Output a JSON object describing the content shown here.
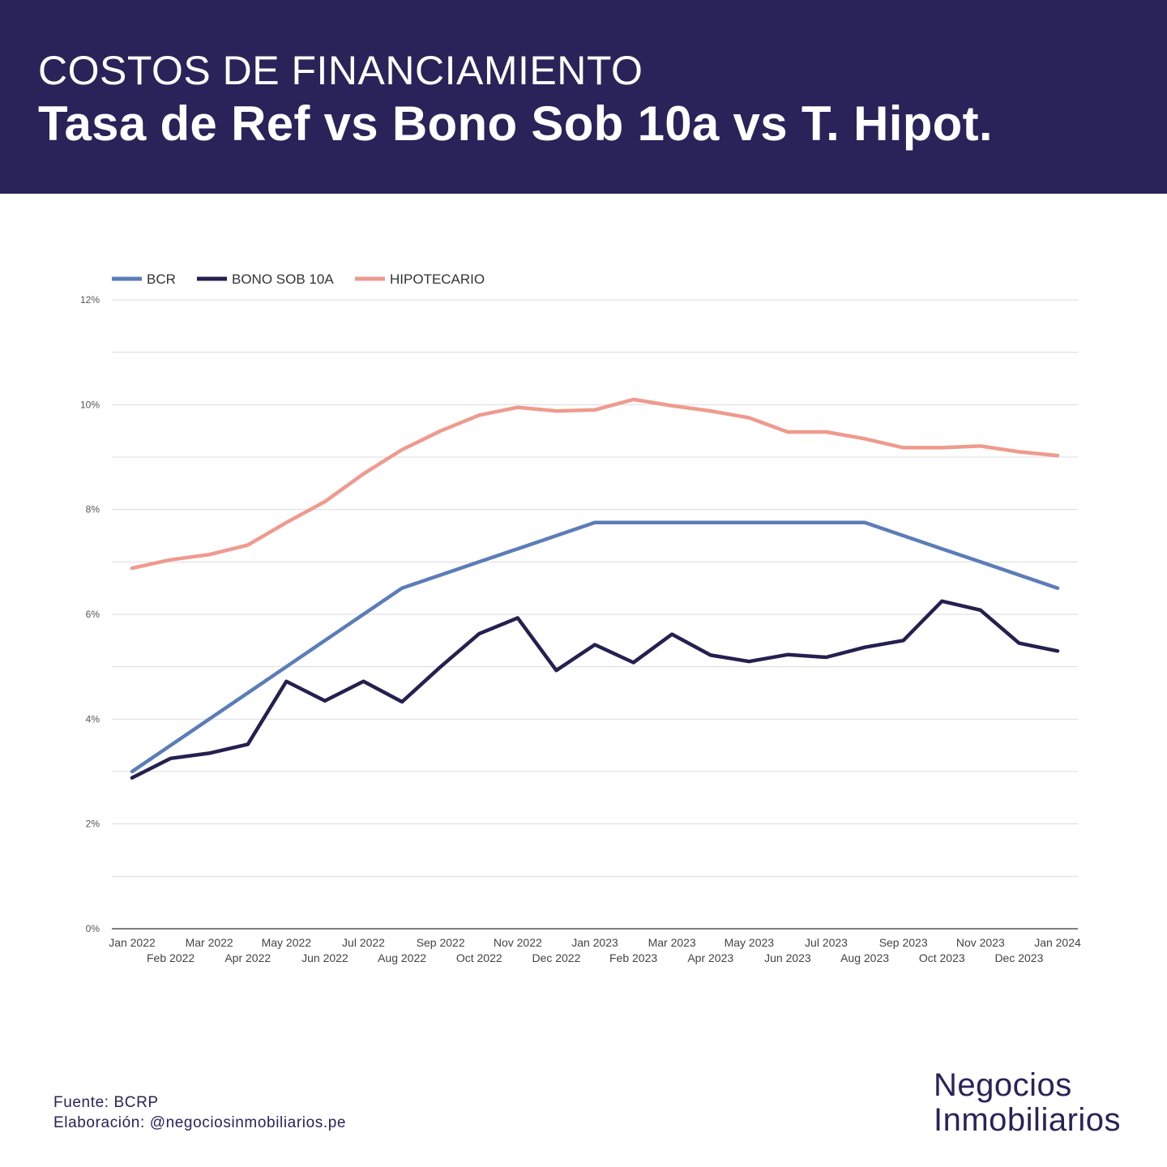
{
  "header": {
    "kicker": "COSTOS DE FINANCIAMIENTO",
    "title": "Tasa de Ref vs Bono Sob 10a vs T. Hipot."
  },
  "chart_data": {
    "type": "line",
    "x": [
      "Jan 2022",
      "Feb 2022",
      "Mar 2022",
      "Apr 2022",
      "May 2022",
      "Jun 2022",
      "Jul 2022",
      "Aug 2022",
      "Sep 2022",
      "Oct 2022",
      "Nov 2022",
      "Dec 2022",
      "Jan 2023",
      "Feb 2023",
      "Mar 2023",
      "Apr 2023",
      "May 2023",
      "Jun 2023",
      "Jul 2023",
      "Aug 2023",
      "Sep 2023",
      "Oct 2023",
      "Nov 2023",
      "Dec 2023",
      "Jan 2024"
    ],
    "series": [
      {
        "name": "BCR",
        "color": "#5b7db8",
        "values": [
          3.0,
          3.5,
          4.0,
          4.5,
          5.0,
          5.5,
          6.0,
          6.5,
          6.75,
          7.0,
          7.25,
          7.5,
          7.75,
          7.75,
          7.75,
          7.75,
          7.75,
          7.75,
          7.75,
          7.75,
          7.5,
          7.25,
          7.0,
          6.75,
          6.5
        ]
      },
      {
        "name": "BONO SOB 10A",
        "color": "#24204f",
        "values": [
          2.88,
          3.25,
          3.35,
          3.52,
          4.72,
          4.35,
          4.72,
          4.33,
          5.0,
          5.63,
          5.93,
          4.93,
          5.42,
          5.08,
          5.62,
          5.22,
          5.1,
          5.23,
          5.18,
          5.37,
          5.5,
          6.25,
          6.08,
          5.45,
          5.3
        ]
      },
      {
        "name": "HIPOTECARIO",
        "color": "#ef9a8e",
        "values": [
          6.88,
          7.04,
          7.14,
          7.32,
          7.75,
          8.15,
          8.68,
          9.14,
          9.5,
          9.8,
          9.95,
          9.88,
          9.9,
          10.1,
          9.98,
          9.88,
          9.75,
          9.48,
          9.48,
          9.35,
          9.18,
          9.18,
          9.21,
          9.1,
          9.03
        ]
      }
    ],
    "y_ticks": [
      "0%",
      "2%",
      "4%",
      "6%",
      "8%",
      "10%",
      "12%"
    ],
    "ylim": [
      0,
      12
    ],
    "grid": true,
    "legend_position": "top-left"
  },
  "footer": {
    "source_line": "Fuente: BCRP",
    "credit_line": "Elaboración:  @negociosinmobiliarios.pe"
  },
  "brand": {
    "line1": "Negocios",
    "line2": "Inmobiliarios"
  }
}
